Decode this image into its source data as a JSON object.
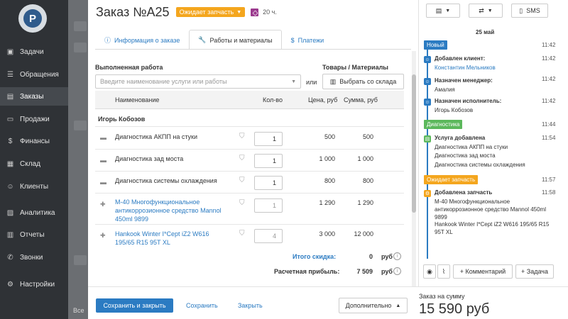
{
  "nav": {
    "logo_letter": "P",
    "items": [
      {
        "label": "Задачи",
        "icon": "tasks-icon"
      },
      {
        "label": "Обращения",
        "icon": "list-icon"
      },
      {
        "label": "Заказы",
        "icon": "orders-icon"
      },
      {
        "label": "Продажи",
        "icon": "sales-icon"
      },
      {
        "label": "Финансы",
        "icon": "finance-icon"
      },
      {
        "label": "Склад",
        "icon": "warehouse-icon"
      },
      {
        "label": "Клиенты",
        "icon": "clients-icon"
      },
      {
        "label": "Аналитика",
        "icon": "analytics-icon"
      },
      {
        "label": "Отчеты",
        "icon": "reports-icon"
      },
      {
        "label": "Звонки",
        "icon": "phone-icon"
      },
      {
        "label": "Настройки",
        "icon": "settings-icon"
      }
    ]
  },
  "background": {
    "fragment": "Все"
  },
  "order": {
    "title": "Заказ №А25",
    "status": "Ожидает запчасть",
    "hours": "20 ч."
  },
  "tabs": [
    {
      "label": "Информация о заказе",
      "icon": "info-icon"
    },
    {
      "label": "Работы и материалы",
      "icon": "wrench-icon"
    },
    {
      "label": "Платежи",
      "icon": "coin-icon"
    }
  ],
  "work": {
    "label": "Выполненная работа",
    "placeholder": "Введите наименование услуги или работы",
    "or": "или",
    "goods_label": "Товары / Материалы",
    "pick_button": "Выбрать со склада"
  },
  "table": {
    "headers": {
      "name": "Наименование",
      "qty": "Кол-во",
      "price": "Цена, руб",
      "sum": "Сумма, руб"
    },
    "group": "Игорь Кобозов",
    "rows": [
      {
        "name": "Диагностика АКПП на стуки",
        "qty": "1",
        "price": "500",
        "sum": "500",
        "type": "service"
      },
      {
        "name": "Диагностика зад моста",
        "qty": "1",
        "price": "1 000",
        "sum": "1 000",
        "type": "service"
      },
      {
        "name": "Диагностика системы охлаждения",
        "qty": "1",
        "price": "800",
        "sum": "800",
        "type": "service"
      },
      {
        "name": "М-40 Многофункциональное антикоррозионное средство Mannol 450ml 9899",
        "qty": "1",
        "price": "1 290",
        "sum": "1 290",
        "type": "product"
      },
      {
        "name": "Hankook Winter I*Cept iZ2 W616 195/65 R15 95T XL",
        "qty": "4",
        "price": "3 000",
        "sum": "12 000",
        "type": "product"
      }
    ]
  },
  "totals": {
    "discount_label": "Итого скидка:",
    "discount_value": "0",
    "discount_unit": "руб",
    "profit_label": "Расчетная прибыль:",
    "profit_value": "7 509",
    "profit_unit": "руб"
  },
  "footer": {
    "save_close": "Сохранить и закрыть",
    "save": "Сохранить",
    "close": "Закрыть",
    "more": "Дополнительно",
    "sum_label": "Заказ на сумму",
    "sum_value": "15 590 руб"
  },
  "right": {
    "sms": "SMS",
    "date": "25 май",
    "timeline": [
      {
        "kind": "tag",
        "label": "Новый",
        "color": "#2b7bc2",
        "time": "11:42"
      },
      {
        "kind": "event",
        "title": "Добавлен клиент:",
        "time": "11:42",
        "lines": [
          "Константин Мельников"
        ],
        "link": true
      },
      {
        "kind": "event",
        "title": "Назначен менеджер:",
        "time": "11:42",
        "lines": [
          "Амалия"
        ]
      },
      {
        "kind": "event",
        "title": "Назначен исполнитель:",
        "time": "11:42",
        "lines": [
          "Игорь Кобозов"
        ]
      },
      {
        "kind": "tag",
        "label": "Диагностика",
        "color": "#5cb85c",
        "time": "11:44"
      },
      {
        "kind": "event",
        "title": "Услуга добавлена",
        "time": "11:54",
        "lines": [
          "Диагностика АКПП на стуки",
          "Диагностика зад моста",
          "Диагностика системы охлаждения"
        ]
      },
      {
        "kind": "tag",
        "label": "Ожидает запчасть",
        "color": "#f4a61e",
        "time": "11:57"
      },
      {
        "kind": "event",
        "title": "Добавлена запчасть",
        "time": "11:58",
        "lines": [
          "М-40 Многофункциональное антикоррозионное средство Mannol 450ml 9899",
          "Hankook Winter I*Cept iZ2 W616 195/65 R15 95T XL"
        ]
      }
    ],
    "comment_button": "+ Комментарий",
    "task_button": "+ Задача"
  }
}
